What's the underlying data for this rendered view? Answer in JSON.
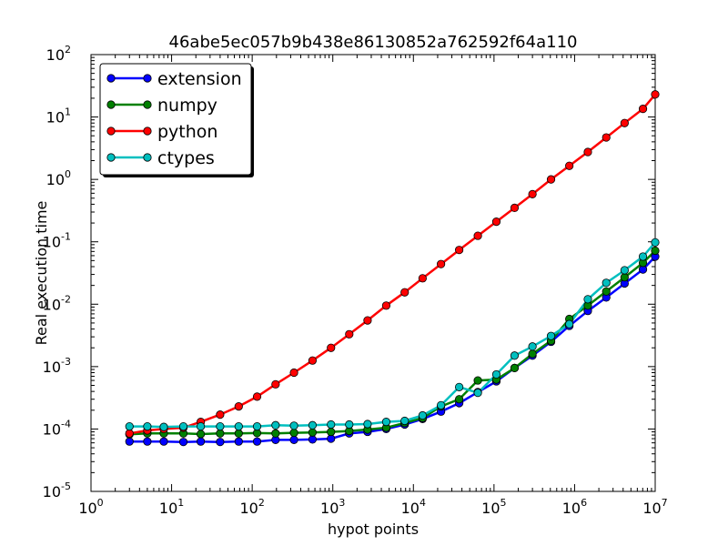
{
  "chart_data": {
    "type": "line",
    "title": "46abe5ec057b9b438e86130852a762592f64a110",
    "xlabel": "hypot points",
    "ylabel": "Real execution time",
    "xscale": "log",
    "yscale": "log",
    "xlim": [
      1,
      10000000
    ],
    "ylim": [
      1e-05,
      100
    ],
    "x_ticks": [
      {
        "value": 1,
        "base": "10",
        "exp": "0"
      },
      {
        "value": 10,
        "base": "10",
        "exp": "1"
      },
      {
        "value": 100,
        "base": "10",
        "exp": "2"
      },
      {
        "value": 1000,
        "base": "10",
        "exp": "3"
      },
      {
        "value": 10000,
        "base": "10",
        "exp": "4"
      },
      {
        "value": 100000,
        "base": "10",
        "exp": "5"
      },
      {
        "value": 1000000,
        "base": "10",
        "exp": "6"
      },
      {
        "value": 10000000,
        "base": "10",
        "exp": "7"
      }
    ],
    "y_ticks": [
      {
        "value": 1e-05,
        "base": "10",
        "exp": "-5"
      },
      {
        "value": 0.0001,
        "base": "10",
        "exp": "-4"
      },
      {
        "value": 0.001,
        "base": "10",
        "exp": "-3"
      },
      {
        "value": 0.01,
        "base": "10",
        "exp": "-2"
      },
      {
        "value": 0.1,
        "base": "10",
        "exp": "-1"
      },
      {
        "value": 1,
        "base": "10",
        "exp": "0"
      },
      {
        "value": 10,
        "base": "10",
        "exp": "1"
      },
      {
        "value": 100,
        "base": "10",
        "exp": "2"
      }
    ],
    "grid": false,
    "legend_position": "top-left",
    "x": [
      3,
      5,
      8,
      14,
      23,
      40,
      68,
      115,
      195,
      330,
      560,
      950,
      1600,
      2700,
      4600,
      7800,
      13000,
      22000,
      37000,
      63000,
      107000,
      180000,
      300000,
      510000,
      860000,
      1460000,
      2470000,
      4170000,
      7050000,
      10000000
    ],
    "series": [
      {
        "name": "extension",
        "color": "#0000ff",
        "values": [
          6.3e-05,
          6.3e-05,
          6.3e-05,
          6.2e-05,
          6.3e-05,
          6.2e-05,
          6.3e-05,
          6.3e-05,
          6.7e-05,
          6.7e-05,
          6.8e-05,
          7e-05,
          8.5e-05,
          9e-05,
          0.0001,
          0.000118,
          0.000145,
          0.00019,
          0.00026,
          0.00039,
          0.00058,
          0.00095,
          0.0015,
          0.0025,
          0.0045,
          0.0078,
          0.0128,
          0.0215,
          0.036,
          0.058
        ]
      },
      {
        "name": "numpy",
        "color": "#008000",
        "values": [
          8.2e-05,
          8.5e-05,
          8.5e-05,
          8.5e-05,
          8.3e-05,
          8.5e-05,
          8.5e-05,
          8.6e-05,
          8.5e-05,
          8.7e-05,
          8.8e-05,
          9e-05,
          9.3e-05,
          9.8e-05,
          0.000105,
          0.000125,
          0.00015,
          0.00023,
          0.0003,
          0.0006,
          0.00062,
          0.00095,
          0.0016,
          0.0026,
          0.0058,
          0.0095,
          0.016,
          0.027,
          0.046,
          0.072
        ]
      },
      {
        "name": "python",
        "color": "#ff0000",
        "values": [
          8.5e-05,
          9.5e-05,
          0.0001,
          0.000105,
          0.00013,
          0.00017,
          0.00023,
          0.00033,
          0.00052,
          0.0008,
          0.00125,
          0.002,
          0.0033,
          0.0055,
          0.0095,
          0.0155,
          0.026,
          0.044,
          0.074,
          0.125,
          0.21,
          0.35,
          0.58,
          1.0,
          1.65,
          2.75,
          4.7,
          8.0,
          13.5,
          23
        ]
      },
      {
        "name": "ctypes",
        "color": "#00bfbf",
        "values": [
          0.00011,
          0.00011,
          0.000108,
          0.00011,
          0.00011,
          0.00011,
          0.00011,
          0.00011,
          0.000115,
          0.000113,
          0.000115,
          0.000118,
          0.000118,
          0.00012,
          0.00013,
          0.000135,
          0.000165,
          0.00024,
          0.00047,
          0.00038,
          0.00075,
          0.0015,
          0.0021,
          0.0031,
          0.0048,
          0.012,
          0.022,
          0.035,
          0.058,
          0.098
        ]
      }
    ]
  }
}
